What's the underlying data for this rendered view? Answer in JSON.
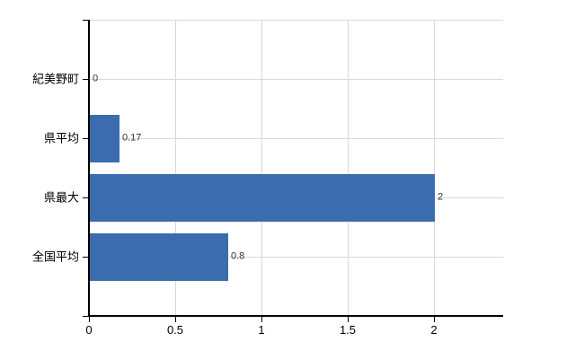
{
  "chart": {
    "background": "#ffffff"
  },
  "chart_data": {
    "type": "bar",
    "orientation": "horizontal",
    "categories": [
      "紀美野町",
      "県平均",
      "県最大",
      "全国平均"
    ],
    "values": [
      0,
      0.17,
      2,
      0.8
    ],
    "value_labels": [
      "0",
      "0.17",
      "2",
      "0.8"
    ],
    "x_ticks": [
      0,
      0.5,
      1,
      1.5,
      2
    ],
    "x_tick_labels": [
      "0",
      "0.5",
      "1",
      "1.5",
      "2"
    ],
    "xlim": [
      0,
      2.4
    ],
    "grid": true,
    "legend": false,
    "bar_color": "#3b6cae",
    "grid_color": "#d9d9d9",
    "axis_color": "#000000",
    "value_label_color": "#333333",
    "tick_label_color": "#000000"
  }
}
